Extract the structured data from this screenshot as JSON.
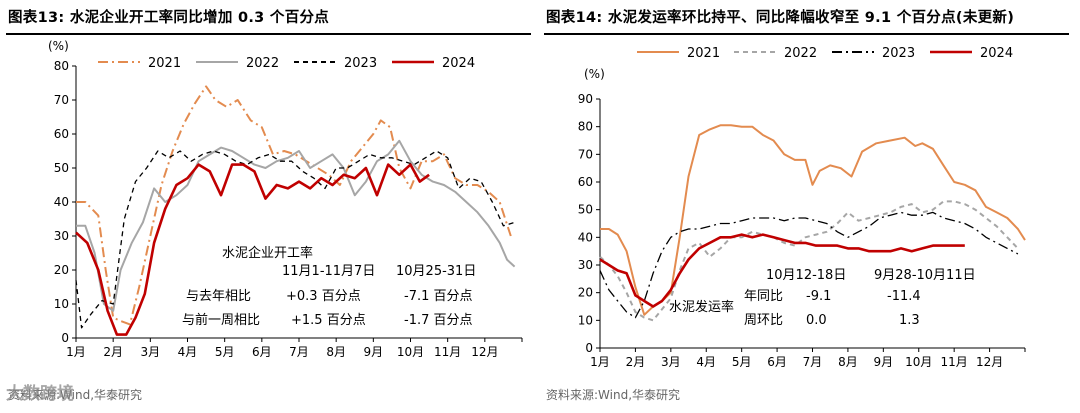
{
  "charts_meta": {
    "left_title": "图表13:  水泥企业开工率同比增加 0.3 个百分点",
    "right_title": "图表14:  水泥发运率环比持平、同比降幅收窄至 9.1 个百分点(未更新)",
    "left_source": "资料来源:Wind,华泰研究",
    "right_source": "资料来源:Wind,华泰研究",
    "watermark": "大数跨境"
  },
  "colors": {
    "y2021": "#e38b4f",
    "y2022": "#a6a6a6",
    "y2023": "#000000",
    "y2024": "#c00000"
  },
  "chart_data": [
    {
      "type": "line",
      "title": "水泥企业开工率同比增加 0.3 个百分点",
      "ylabel": "(%)",
      "ylim": [
        0,
        80
      ],
      "yticks": [
        0,
        10,
        20,
        30,
        40,
        50,
        60,
        70,
        80
      ],
      "xlim": [
        1,
        13
      ],
      "categories": [
        "1月",
        "2月",
        "3月",
        "4月",
        "5月",
        "6月",
        "7月",
        "8月",
        "9月",
        "10月",
        "11月",
        "12月"
      ],
      "legend": [
        "2021",
        "2022",
        "2023",
        "2024"
      ],
      "series": [
        {
          "name": "2021",
          "style": "dashdot",
          "x": [
            1,
            1.25,
            1.6,
            1.8,
            2,
            2.2,
            2.45,
            2.7,
            3,
            3.3,
            3.6,
            3.9,
            4.2,
            4.5,
            4.75,
            5.05,
            5.35,
            5.7,
            6,
            6.3,
            6.6,
            6.9,
            7.2,
            7.5,
            7.8,
            8.1,
            8.4,
            8.7,
            9,
            9.2,
            9.45,
            9.7,
            10,
            10.3,
            10.6,
            10.9,
            11.2,
            11.5,
            11.8,
            12.1,
            12.4,
            12.7
          ],
          "values": [
            40,
            40,
            36,
            20,
            6,
            5,
            4,
            15,
            30,
            45,
            55,
            63,
            69,
            74,
            70,
            68,
            70,
            64,
            62,
            54,
            55,
            54,
            52,
            50,
            48,
            45,
            52,
            56,
            60,
            64,
            62,
            50,
            44,
            52,
            52,
            54,
            47,
            45,
            45,
            43,
            40,
            30
          ]
        },
        {
          "name": "2022",
          "style": "solid",
          "x": [
            1,
            1.25,
            1.5,
            1.75,
            2,
            2.2,
            2.5,
            2.8,
            3.1,
            3.4,
            3.7,
            4,
            4.3,
            4.6,
            4.9,
            5.2,
            5.5,
            5.8,
            6.1,
            6.4,
            6.7,
            7,
            7.3,
            7.6,
            7.9,
            8.2,
            8.5,
            8.8,
            9.1,
            9.4,
            9.7,
            10,
            10.3,
            10.6,
            10.9,
            11.2,
            11.5,
            11.8,
            12.1,
            12.4,
            12.6,
            12.8
          ],
          "values": [
            33,
            33,
            25,
            10,
            8,
            20,
            28,
            34,
            44,
            40,
            42,
            45,
            52,
            54,
            56,
            55,
            53,
            51,
            50,
            52,
            53,
            55,
            50,
            52,
            54,
            50,
            42,
            46,
            52,
            54,
            58,
            52,
            48,
            46,
            45,
            43,
            40,
            37,
            33,
            28,
            23,
            21
          ]
        },
        {
          "name": "2023",
          "style": "dashed",
          "x": [
            1,
            1.15,
            1.4,
            1.7,
            2,
            2.3,
            2.6,
            2.9,
            3.2,
            3.5,
            3.8,
            4.1,
            4.4,
            4.7,
            5,
            5.3,
            5.6,
            5.9,
            6.2,
            6.5,
            6.8,
            7.1,
            7.4,
            7.7,
            8,
            8.3,
            8.6,
            8.9,
            9.2,
            9.5,
            9.8,
            10.1,
            10.4,
            10.7,
            11,
            11.3,
            11.6,
            11.9,
            12.2,
            12.5,
            12.8
          ],
          "values": [
            17,
            3,
            7,
            11,
            10,
            35,
            46,
            50,
            55,
            53,
            55,
            52,
            54,
            55,
            54,
            52,
            51,
            53,
            54,
            52,
            52,
            49,
            47,
            44,
            50,
            50,
            52,
            54,
            53,
            53,
            52,
            51,
            53,
            55,
            53,
            44,
            47,
            46,
            40,
            33,
            34
          ]
        },
        {
          "name": "2024",
          "style": "solid",
          "x": [
            1,
            1.3,
            1.6,
            1.85,
            2.1,
            2.35,
            2.6,
            2.85,
            3.1,
            3.4,
            3.7,
            4,
            4.3,
            4.6,
            4.9,
            5.2,
            5.5,
            5.8,
            6.1,
            6.4,
            6.7,
            7,
            7.3,
            7.6,
            7.9,
            8.2,
            8.5,
            8.8,
            9.1,
            9.4,
            9.7,
            10,
            10.25,
            10.5
          ],
          "values": [
            31,
            28,
            20,
            8,
            1,
            1,
            6,
            13,
            28,
            38,
            45,
            47,
            51,
            49,
            42,
            51,
            51,
            49,
            41,
            45,
            44,
            46,
            44,
            47,
            45,
            48,
            47,
            50,
            42,
            51,
            48,
            51,
            46,
            48
          ]
        }
      ],
      "annotations": {
        "header": "水泥企业开工率",
        "col1": "11月1-11月7日",
        "col2": "10月25-31日",
        "row1_label": "与去年相比",
        "row1_v1": "+0.3 百分点",
        "row1_v2": "-7.1 百分点",
        "row2_label": "与前一周相比",
        "row2_v1": "+1.5 百分点",
        "row2_v2": "-1.7 百分点"
      }
    },
    {
      "type": "line",
      "title": "水泥发运率环比持平、同比降幅收窄至 9.1 个百分点(未更新)",
      "ylabel": "(%)",
      "ylim": [
        0,
        90
      ],
      "yticks": [
        0,
        10,
        20,
        30,
        40,
        50,
        60,
        70,
        80,
        90
      ],
      "xlim": [
        1,
        13
      ],
      "categories": [
        "1月",
        "2月",
        "3月",
        "4月",
        "5月",
        "6月",
        "7月",
        "8月",
        "9月",
        "10月",
        "11月",
        "12月"
      ],
      "legend": [
        "2021",
        "2022",
        "2023",
        "2024"
      ],
      "series": [
        {
          "name": "2021",
          "style": "solid",
          "x": [
            1,
            1.25,
            1.5,
            1.75,
            2,
            2.25,
            2.5,
            2.75,
            3,
            3.25,
            3.5,
            3.8,
            4.1,
            4.4,
            4.7,
            5,
            5.3,
            5.6,
            5.9,
            6.2,
            6.5,
            6.8,
            7,
            7.2,
            7.5,
            7.8,
            8.1,
            8.4,
            8.8,
            9.2,
            9.6,
            9.9,
            10.1,
            10.4,
            10.7,
            11,
            11.3,
            11.6,
            11.9,
            12.2,
            12.5,
            12.8,
            13
          ],
          "values": [
            43,
            43,
            41,
            35,
            22,
            12,
            15,
            17,
            20,
            40,
            62,
            77,
            79,
            80.5,
            80.5,
            80,
            80,
            77,
            75,
            70,
            68,
            68,
            59,
            64,
            66,
            65,
            62,
            71,
            74,
            75,
            76,
            73,
            74,
            72,
            66,
            60,
            59,
            57,
            51,
            49,
            47,
            43,
            39
          ]
        },
        {
          "name": "2022",
          "style": "dashed",
          "x": [
            1,
            1.25,
            1.5,
            1.75,
            2,
            2.25,
            2.5,
            2.75,
            3,
            3.25,
            3.5,
            3.8,
            4.1,
            4.4,
            4.7,
            5,
            5.3,
            5.6,
            5.9,
            6.2,
            6.5,
            6.8,
            7.1,
            7.4,
            7.7,
            8,
            8.3,
            8.6,
            8.9,
            9.2,
            9.5,
            9.8,
            10.1,
            10.4,
            10.7,
            11,
            11.3,
            11.6,
            11.9,
            12.2,
            12.5,
            12.8
          ],
          "values": [
            33,
            30,
            26,
            20,
            13,
            11,
            10,
            14,
            18,
            28,
            36,
            38,
            33,
            36,
            40,
            40,
            42,
            41,
            40,
            38,
            37,
            40,
            41,
            42,
            45,
            49,
            46,
            47,
            48,
            49,
            51,
            52,
            49,
            50,
            53,
            53,
            52,
            50,
            47,
            44,
            40,
            36
          ]
        },
        {
          "name": "2023",
          "style": "dashdot",
          "x": [
            1,
            1.25,
            1.5,
            1.75,
            2,
            2.25,
            2.5,
            2.75,
            3,
            3.25,
            3.5,
            3.8,
            4.1,
            4.4,
            4.7,
            5,
            5.3,
            5.6,
            5.9,
            6.2,
            6.5,
            6.8,
            7.1,
            7.4,
            7.7,
            8,
            8.3,
            8.6,
            8.9,
            9.2,
            9.5,
            9.8,
            10.1,
            10.4,
            10.7,
            11,
            11.3,
            11.6,
            11.9,
            12.2,
            12.5,
            12.8
          ],
          "values": [
            28,
            21,
            17,
            13,
            11,
            17,
            27,
            35,
            40,
            42,
            43,
            43,
            44,
            45,
            45,
            46,
            47,
            47,
            47,
            46,
            47,
            47,
            46,
            45,
            42,
            40,
            42,
            44,
            47,
            48,
            49,
            48,
            48,
            49,
            47,
            46,
            45,
            43,
            40,
            38,
            36,
            34
          ]
        },
        {
          "name": "2024",
          "style": "solid",
          "x": [
            1,
            1.25,
            1.5,
            1.75,
            2,
            2.25,
            2.5,
            2.75,
            3,
            3.25,
            3.5,
            3.8,
            4.1,
            4.4,
            4.7,
            5,
            5.3,
            5.6,
            5.9,
            6.2,
            6.5,
            6.8,
            7.1,
            7.4,
            7.7,
            8,
            8.3,
            8.6,
            8.9,
            9.2,
            9.5,
            9.8,
            10.1,
            10.4,
            10.7,
            11,
            11.3
          ],
          "values": [
            32,
            30,
            28,
            27,
            19,
            17,
            15,
            17,
            21,
            27,
            32,
            36,
            38,
            40,
            40,
            41,
            40,
            41,
            40,
            39,
            38,
            38,
            37,
            37,
            37,
            36,
            36,
            35,
            35,
            35,
            36,
            35,
            36,
            37,
            37,
            37,
            37
          ]
        }
      ],
      "annotations": {
        "label": "水泥发运率",
        "col1": "10月12-18日",
        "col2": "9月28-10月11日",
        "row1_label": "年同比",
        "row1_v1": "-9.1",
        "row1_v2": "-11.4",
        "row2_label": "周环比",
        "row2_v1": "0.0",
        "row2_v2": "1.3"
      }
    }
  ]
}
